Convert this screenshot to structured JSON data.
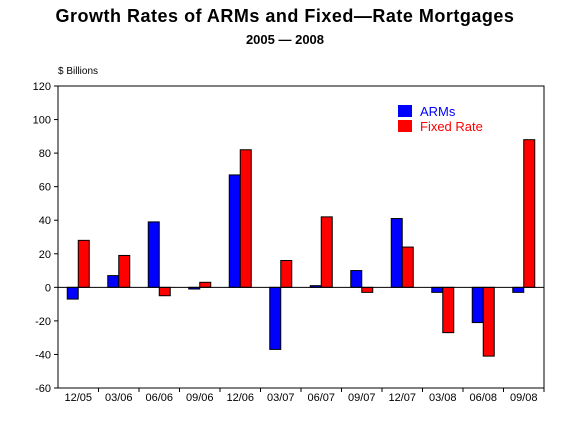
{
  "chart_data": {
    "type": "bar",
    "title": "Growth Rates of ARMs and Fixed—Rate Mortgages",
    "subtitle": "2005 — 2008",
    "unit_label": "$ Billions",
    "xlabel": "",
    "ylabel": "",
    "ylim": [
      -60,
      120
    ],
    "yticks": [
      -60,
      -40,
      -20,
      0,
      20,
      40,
      60,
      80,
      100,
      120
    ],
    "categories": [
      "12/05",
      "03/06",
      "06/06",
      "09/06",
      "12/06",
      "03/07",
      "06/07",
      "09/07",
      "12/07",
      "03/08",
      "06/08",
      "09/08"
    ],
    "series": [
      {
        "name": "ARMs",
        "color": "#0000ff",
        "values": [
          -7,
          7,
          39,
          -1,
          67,
          -37,
          1,
          10,
          41,
          -3,
          -21,
          -3
        ]
      },
      {
        "name": "Fixed Rate",
        "color": "#ff0000",
        "values": [
          28,
          19,
          -5,
          3,
          82,
          16,
          42,
          -3,
          24,
          -27,
          -41,
          88
        ]
      }
    ],
    "grid": false,
    "legend_position": "top-right"
  }
}
